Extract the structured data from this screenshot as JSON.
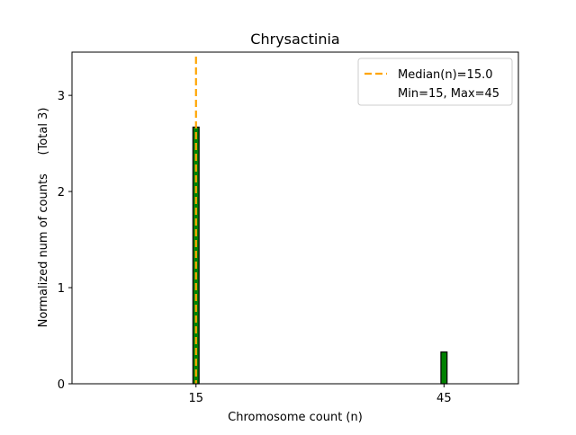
{
  "chart_data": {
    "type": "bar",
    "title": "Chrysactinia",
    "xlabel": "Chromosome count (n)",
    "ylabel": "Normalized num of counts     (Total 3)",
    "x": [
      15,
      45
    ],
    "values": [
      2.67,
      0.33
    ],
    "xlim": [
      0,
      54
    ],
    "ylim": [
      0,
      3.45
    ],
    "x_ticks": [
      15,
      45
    ],
    "y_ticks": [
      0,
      1,
      2,
      3
    ],
    "grid": false,
    "bar_color": "#008000",
    "bar_edge_color": "#000000",
    "median": 15.0,
    "median_color": "#FFA500",
    "legend": {
      "placement": "top-right",
      "entries": [
        "Median(n)=15.0",
        "Min=15, Max=45"
      ]
    }
  }
}
